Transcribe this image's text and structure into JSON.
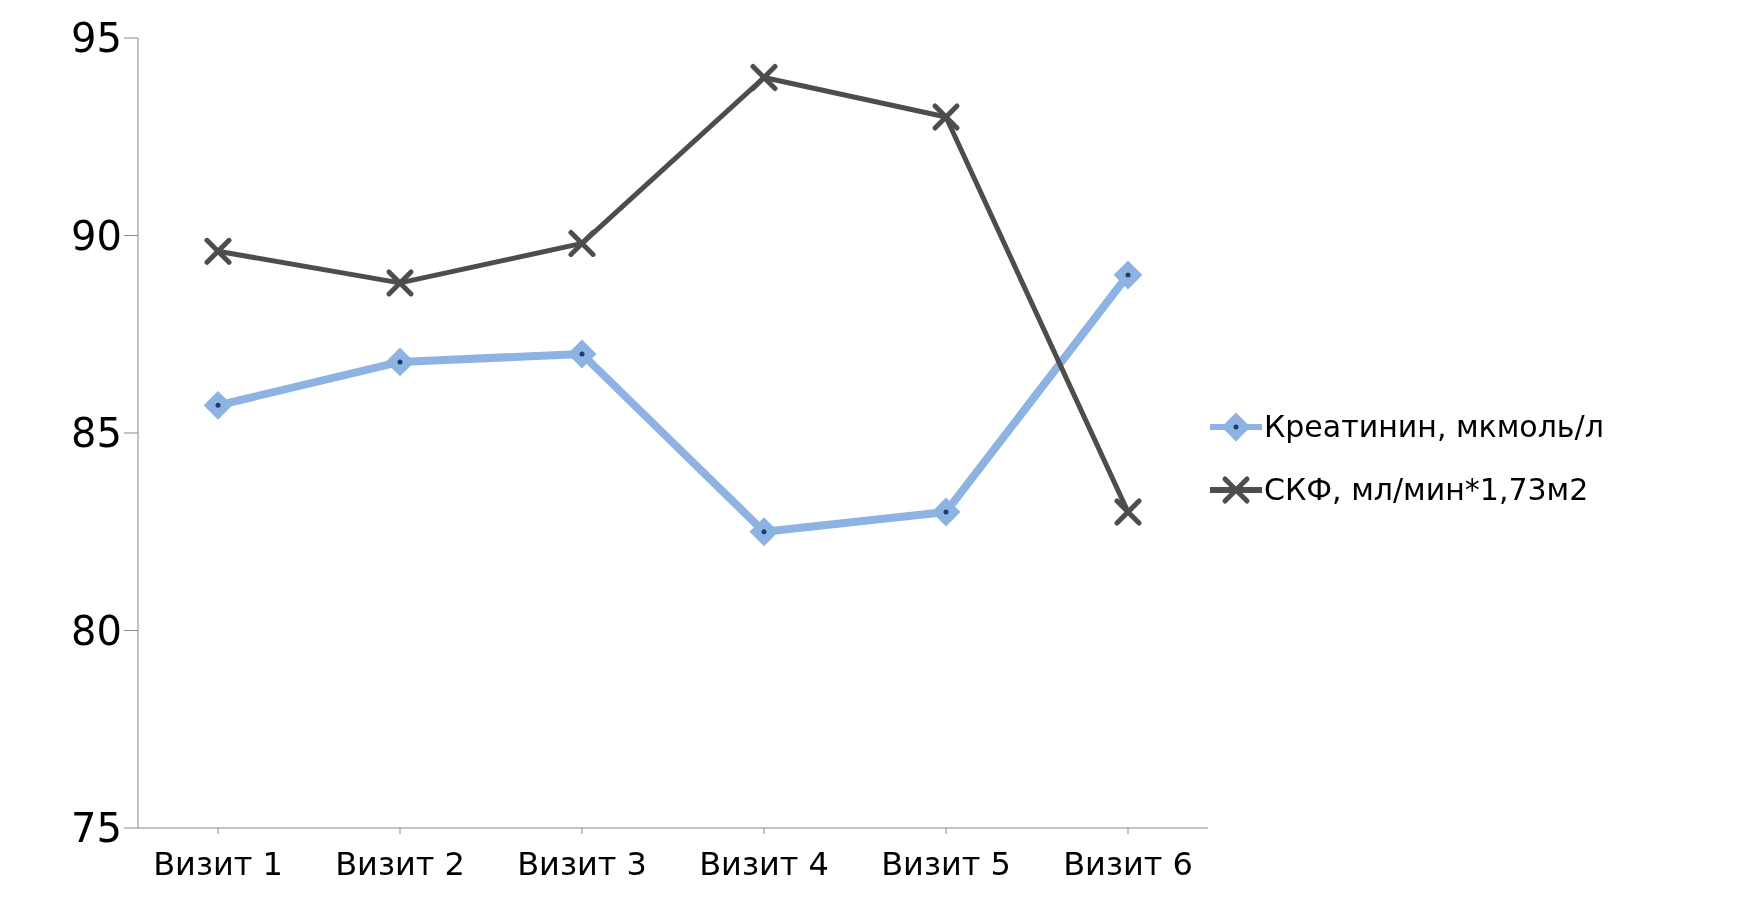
{
  "chart_data": {
    "type": "line",
    "categories": [
      "Визит 1",
      "Визит 2",
      "Визит 3",
      "Визит 4",
      "Визит 5",
      "Визит 6"
    ],
    "series": [
      {
        "name": "Креатинин, мкмоль/л",
        "color": "#8db3e2",
        "marker": "diamond",
        "values": [
          85.7,
          86.8,
          87.0,
          82.5,
          83.0,
          89.0
        ]
      },
      {
        "name": "СКФ, мл/мин*1,73м2",
        "color": "#4d4d4d",
        "marker": "cross",
        "values": [
          89.6,
          88.8,
          89.8,
          94.0,
          93.0,
          83.0
        ]
      }
    ],
    "ylim": [
      75,
      95
    ],
    "yticks": [
      75,
      80,
      85,
      90,
      95
    ],
    "grid": false,
    "legend": "right"
  }
}
